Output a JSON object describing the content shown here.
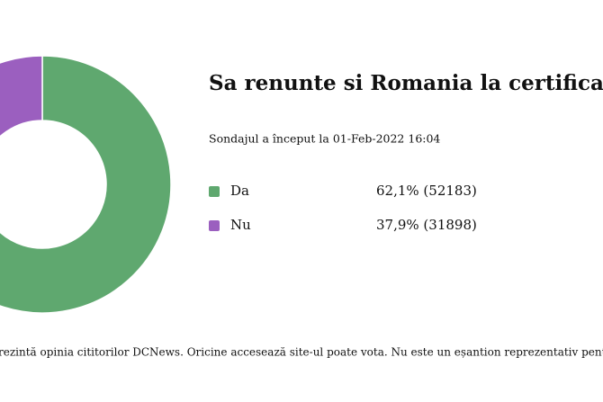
{
  "chart_data": {
    "type": "donut",
    "title": "Sa renunte si Romania la certificatul v",
    "subtitle": "Sondajul a început la 01-Feb-2022 16:04",
    "categories": [
      "Da",
      "Nu"
    ],
    "values": [
      62.1,
      37.9
    ],
    "value_labels": [
      "62,1% (52183)",
      "37,9% (31898)"
    ],
    "counts": [
      52183,
      31898
    ],
    "colors": [
      "#5fa86f",
      "#9b5fbf"
    ],
    "note": "rezintă opinia cititorilor DCNews. Oricine accesează site-ul poate vota. Nu este un eșantion reprezentativ pentru populația ge"
  }
}
